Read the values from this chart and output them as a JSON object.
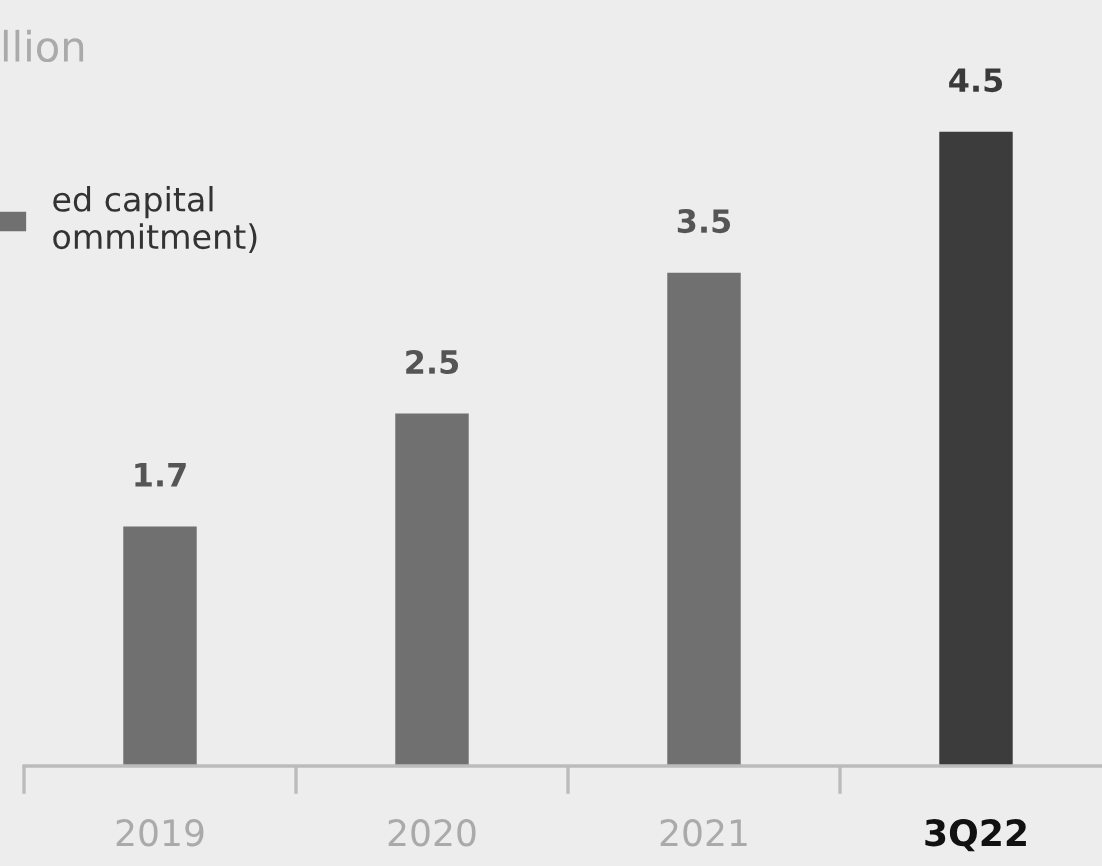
{
  "chart_data": {
    "type": "bar",
    "title": "llion",
    "categories": [
      "2019",
      "2020",
      "2021",
      "3Q22"
    ],
    "series": [
      {
        "name": "ed capital\nommitment)",
        "values": [
          1.7,
          2.5,
          3.5,
          4.5
        ],
        "colors": [
          "#707070",
          "#707070",
          "#707070",
          "#3c3c3c"
        ]
      }
    ],
    "data_labels": true,
    "legend": "top left",
    "grid": false
  }
}
